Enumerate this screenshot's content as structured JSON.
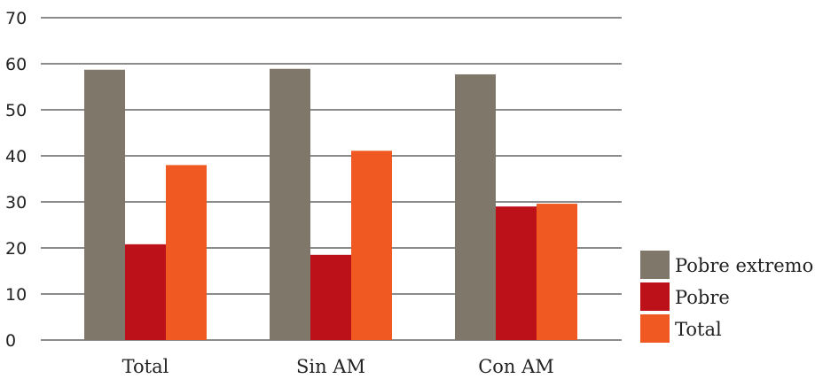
{
  "chart_data": {
    "type": "bar",
    "categories": [
      "Total",
      "Sin AM",
      "Con AM"
    ],
    "series": [
      {
        "name": "Pobre extremo",
        "values": [
          58.7,
          58.9,
          57.7
        ],
        "color": "#7f776a"
      },
      {
        "name": "Pobre",
        "values": [
          20.8,
          18.5,
          29.0
        ],
        "color": "#bd111a"
      },
      {
        "name": "Total",
        "values": [
          38.0,
          41.1,
          29.6
        ],
        "color": "#f05a22"
      }
    ],
    "yticks": [
      "0",
      "10",
      "20",
      "30",
      "40",
      "50",
      "60",
      "70"
    ],
    "ylim": [
      0,
      70
    ],
    "grid": true,
    "legend_position": "bottom-right",
    "title": "",
    "xlabel": "",
    "ylabel": ""
  }
}
